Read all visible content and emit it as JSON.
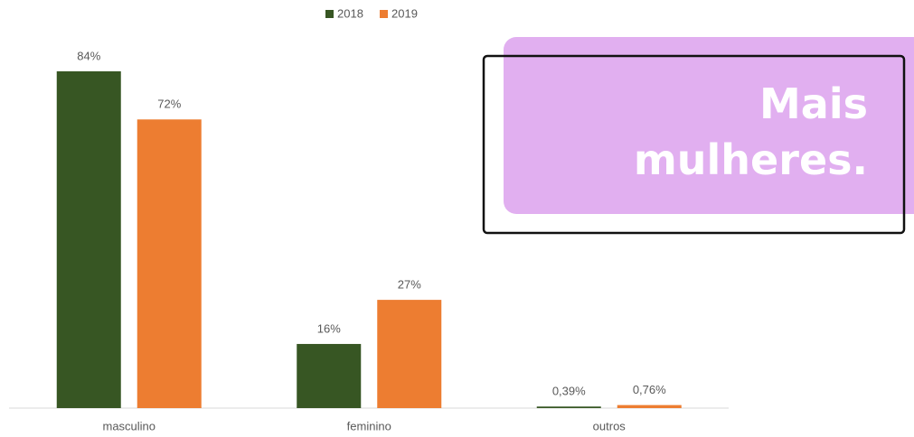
{
  "chart_data": {
    "type": "bar",
    "categories": [
      "masculino",
      "feminino",
      "outros"
    ],
    "series": [
      {
        "name": "2018",
        "color": "#375623",
        "values": [
          84,
          16,
          0.39
        ],
        "value_labels": [
          "84%",
          "16%",
          "0,39%"
        ]
      },
      {
        "name": "2019",
        "color": "#ed7d31",
        "values": [
          72,
          27,
          0.76
        ],
        "value_labels": [
          "72%",
          "27%",
          "0,76%"
        ]
      }
    ],
    "annotation": "Mais mulheres.",
    "legend": "top"
  }
}
